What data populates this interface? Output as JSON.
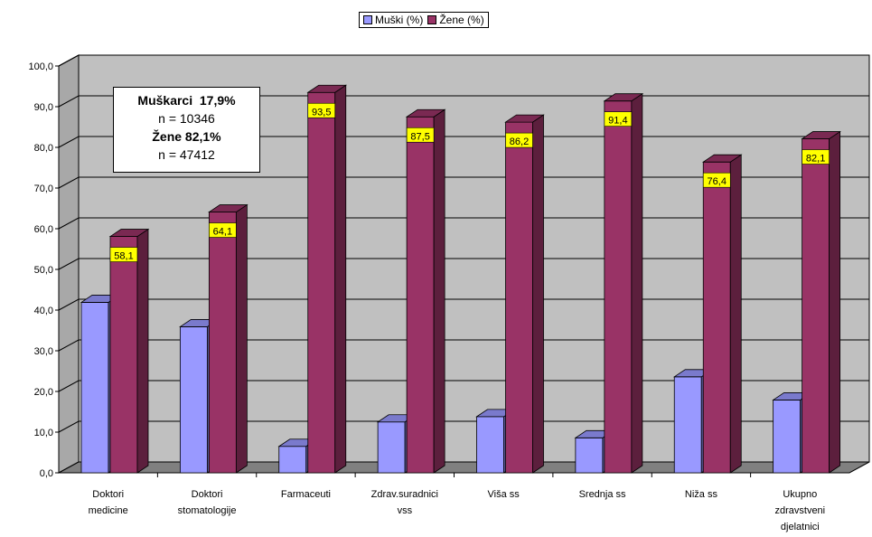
{
  "legend": {
    "men": "Muški (%)",
    "women": "Žene (%)"
  },
  "annotation": {
    "men_label": "Muškarci",
    "men_pct": "17,9%",
    "men_n": "n = 10346",
    "women_label": "Žene 82,1%",
    "women_n": "n = 47412"
  },
  "colors": {
    "men": "#9999ff",
    "women": "#993366",
    "wall": "#c0c0c0",
    "label_bg": "#ffff00"
  },
  "chart_data": {
    "type": "bar",
    "categories": [
      [
        "Doktori",
        "medicine"
      ],
      [
        "Doktori",
        "stomatologije"
      ],
      [
        "Farmaceuti"
      ],
      [
        "Zdrav.suradnici",
        "vss"
      ],
      [
        "Viša ss"
      ],
      [
        "Srednja ss"
      ],
      [
        "Niža ss"
      ],
      [
        "Ukupno",
        "zdravstveni",
        "djelatnici"
      ]
    ],
    "series": [
      {
        "name": "Muški (%)",
        "values": [
          41.9,
          35.9,
          6.5,
          12.5,
          13.8,
          8.6,
          23.6,
          17.9
        ]
      },
      {
        "name": "Žene (%)",
        "values": [
          58.1,
          64.1,
          93.5,
          87.5,
          86.2,
          91.4,
          76.4,
          82.1
        ]
      }
    ],
    "data_labels_women": [
      "58,1",
      "64,1",
      "93,5",
      "87,5",
      "86,2",
      "91,4",
      "76,4",
      "82,1"
    ],
    "y_ticks": [
      "0,0",
      "10,0",
      "20,0",
      "30,0",
      "40,0",
      "50,0",
      "60,0",
      "70,0",
      "80,0",
      "90,0",
      "100,0"
    ],
    "ylim": [
      0,
      100
    ],
    "grid": true,
    "legend_position": "top-center"
  }
}
